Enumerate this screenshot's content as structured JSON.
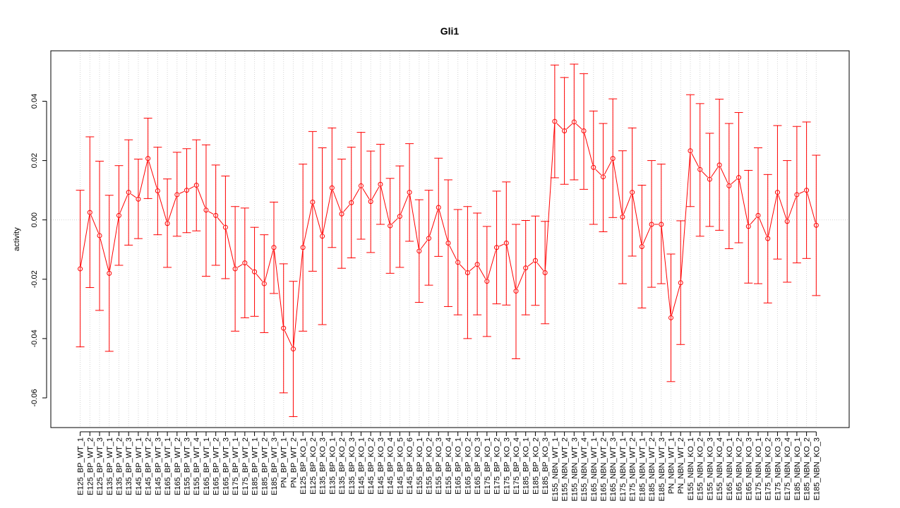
{
  "chart_data": {
    "type": "line",
    "title": "Gli1",
    "xlabel": "",
    "ylabel": "activity",
    "ylim": [
      -0.07,
      0.057
    ],
    "yticks": [
      -0.06,
      -0.04,
      -0.02,
      0.0,
      0.02,
      0.04
    ],
    "ytick_labels": [
      "-0.06",
      "-0.04",
      "-0.02",
      "0.00",
      "0.02",
      "0.04"
    ],
    "grid": true,
    "line_color": "#ff0000",
    "grid_color": "#d3d3d3",
    "categories": [
      "E125_BP_WT_1",
      "E125_BP_WT_2",
      "E125_BP_WT_3",
      "E135_BP_WT_1",
      "E135_BP_WT_2",
      "E135_BP_WT_3",
      "E145_BP_WT_1",
      "E145_BP_WT_2",
      "E145_BP_WT_3",
      "E165_BP_WT_1",
      "E165_BP_WT_2",
      "E155_BP_WT_3",
      "E155_BP_WT_4",
      "E165_BP_WT_1",
      "E165_BP_WT_2",
      "E165_BP_WT_3",
      "E175_BP_WT_1",
      "E175_BP_WT_2",
      "E185_BP_WT_1",
      "E185_BP_WT_2",
      "E185_BP_WT_3",
      "PN_BP_WT_1",
      "PN_BP_WT_2",
      "E125_BP_KO_1",
      "E125_BP_KO_2",
      "E135_BP_KO_3",
      "E135_BP_KO_1",
      "E135_BP_KO_2",
      "E135_BP_KO_3",
      "E145_BP_KO_1",
      "E145_BP_KO_2",
      "E145_BP_KO_3",
      "E145_BP_KO_4",
      "E145_BP_KO_5",
      "E145_BP_KO_6",
      "E155_BP_KO_1",
      "E155_BP_KO_2",
      "E155_BP_KO_3",
      "E155_BP_KO_4",
      "E165_BP_KO_1",
      "E165_BP_KO_2",
      "E165_BP_KO_3",
      "E175_BP_KO_1",
      "E175_BP_KO_2",
      "E175_BP_KO_3",
      "E175_BP_KO_4",
      "E185_BP_KO_1",
      "E185_BP_KO_2",
      "E185_BP_KO_3",
      "E155_NBN_WT_1",
      "E155_NBN_WT_2",
      "E155_NBN_WT_3",
      "E155_NBN_WT_4",
      "E165_NBN_WT_1",
      "E165_NBN_WT_2",
      "E165_NBN_WT_3",
      "E175_NBN_WT_1",
      "E175_NBN_WT_2",
      "E185_NBN_WT_1",
      "E185_NBN_WT_2",
      "E185_NBN_WT_3",
      "PN_NBN_WT_1",
      "PN_NBN_WT_2",
      "E155_NBN_KO_1",
      "E155_NBN_KO_2",
      "E155_NBN_KO_3",
      "E155_NBN_KO_4",
      "E165_NBN_KO_1",
      "E165_NBN_KO_2",
      "E165_NBN_KO_3",
      "E175_NBN_KO_1",
      "E175_NBN_KO_2",
      "E175_NBN_KO_3",
      "E175_NBN_KO_4",
      "E185_NBN_KO_1",
      "E185_NBN_KO_2",
      "E185_NBN_KO_3"
    ],
    "values": [
      -0.0165,
      0.0025,
      -0.0053,
      -0.018,
      0.0015,
      0.0093,
      0.007,
      0.0207,
      0.0098,
      -0.0012,
      0.0085,
      0.01,
      0.0117,
      0.0033,
      0.0015,
      -0.0025,
      -0.0165,
      -0.0145,
      -0.0175,
      -0.0215,
      -0.0093,
      -0.0365,
      -0.0435,
      -0.0093,
      0.006,
      -0.0055,
      0.0108,
      0.002,
      0.0058,
      0.0115,
      0.0062,
      0.012,
      -0.002,
      0.0012,
      0.0093,
      -0.0105,
      -0.0062,
      0.0042,
      -0.0078,
      -0.0143,
      -0.0178,
      -0.015,
      -0.0207,
      -0.0093,
      -0.0078,
      -0.024,
      -0.0162,
      -0.0137,
      -0.0178,
      0.0332,
      0.03,
      0.033,
      0.03,
      0.0177,
      0.0145,
      0.0207,
      0.001,
      0.0093,
      -0.009,
      -0.0015,
      -0.0015,
      -0.033,
      -0.0212,
      0.0233,
      0.017,
      0.0137,
      0.0185,
      0.0115,
      0.0143,
      -0.0022,
      0.0015,
      -0.0063,
      0.0093,
      -0.0005,
      0.0085,
      0.01,
      -0.0018
    ],
    "lower": [
      -0.0428,
      -0.0228,
      -0.0305,
      -0.0443,
      -0.0153,
      -0.0085,
      -0.0063,
      0.0072,
      -0.005,
      -0.016,
      -0.0055,
      -0.0043,
      -0.0037,
      -0.019,
      -0.0153,
      -0.0198,
      -0.0375,
      -0.033,
      -0.0325,
      -0.038,
      -0.0248,
      -0.0583,
      -0.0663,
      -0.0375,
      -0.0173,
      -0.0353,
      -0.0093,
      -0.0163,
      -0.0128,
      -0.0065,
      -0.011,
      -0.0015,
      -0.018,
      -0.016,
      -0.0072,
      -0.0278,
      -0.022,
      -0.0123,
      -0.0292,
      -0.032,
      -0.04,
      -0.032,
      -0.0393,
      -0.0283,
      -0.0287,
      -0.0468,
      -0.032,
      -0.0288,
      -0.035,
      0.0142,
      0.012,
      0.0135,
      0.0103,
      -0.0015,
      -0.004,
      0.0008,
      -0.0215,
      -0.0122,
      -0.0297,
      -0.0227,
      -0.0215,
      -0.0545,
      -0.042,
      0.0045,
      -0.0055,
      -0.0022,
      -0.0035,
      -0.0097,
      -0.0077,
      -0.0213,
      -0.0215,
      -0.028,
      -0.0132,
      -0.021,
      -0.0145,
      -0.013,
      -0.0255
    ],
    "upper": [
      0.01,
      0.028,
      0.0198,
      0.0083,
      0.0183,
      0.027,
      0.0205,
      0.0343,
      0.0245,
      0.0138,
      0.0228,
      0.024,
      0.027,
      0.0253,
      0.0185,
      0.0148,
      0.0045,
      0.004,
      -0.0025,
      -0.005,
      0.006,
      -0.0148,
      -0.0207,
      0.0188,
      0.0298,
      0.0243,
      0.031,
      0.0205,
      0.0245,
      0.0295,
      0.0232,
      0.0255,
      0.014,
      0.0182,
      0.0257,
      0.0068,
      0.01,
      0.0208,
      0.0135,
      0.0035,
      0.0045,
      0.0023,
      -0.0022,
      0.0097,
      0.0128,
      -0.0015,
      -0.0002,
      0.0013,
      -0.0005,
      0.0522,
      0.048,
      0.0525,
      0.0493,
      0.0367,
      0.0325,
      0.0408,
      0.0233,
      0.031,
      0.0117,
      0.02,
      0.0188,
      -0.0115,
      -0.0003,
      0.0422,
      0.0392,
      0.0292,
      0.0407,
      0.0325,
      0.0362,
      0.0167,
      0.0243,
      0.0153,
      0.0318,
      0.02,
      0.0315,
      0.033,
      0.0218
    ]
  }
}
